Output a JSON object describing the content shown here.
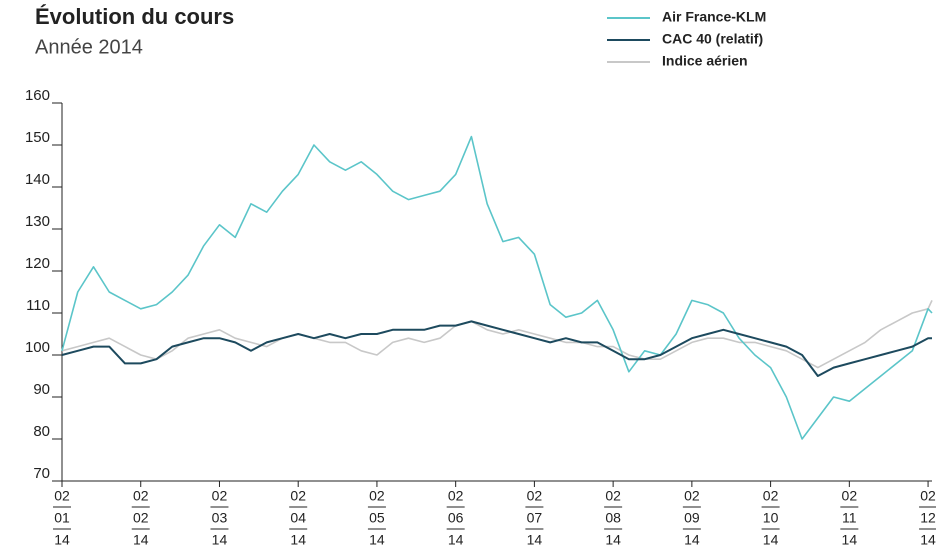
{
  "chart_data": {
    "type": "line",
    "title": "Évolution du cours",
    "subtitle": "Année 2014",
    "x": [
      0,
      0.2,
      0.4,
      0.6,
      0.8,
      1.0,
      1.2,
      1.4,
      1.6,
      1.8,
      2.0,
      2.2,
      2.4,
      2.6,
      2.8,
      3.0,
      3.2,
      3.4,
      3.6,
      3.8,
      4.0,
      4.2,
      4.4,
      4.6,
      4.8,
      5.0,
      5.2,
      5.4,
      5.6,
      5.8,
      6.0,
      6.2,
      6.4,
      6.6,
      6.8,
      7.0,
      7.2,
      7.4,
      7.6,
      7.8,
      8.0,
      8.2,
      8.4,
      8.6,
      8.8,
      9.0,
      9.2,
      9.4,
      9.6,
      9.8,
      10.0,
      10.2,
      10.4,
      10.6,
      10.8,
      11.0,
      11.05
    ],
    "series": [
      {
        "name": "Air France-KLM",
        "color": "#5bc5c9",
        "values": [
          101,
          115,
          121,
          115,
          113,
          111,
          112,
          115,
          119,
          126,
          131,
          128,
          136,
          134,
          139,
          143,
          150,
          146,
          144,
          146,
          143,
          139,
          137,
          138,
          139,
          143,
          152,
          136,
          127,
          128,
          124,
          112,
          109,
          110,
          113,
          106,
          96,
          101,
          100,
          105,
          113,
          112,
          110,
          104,
          100,
          97,
          90,
          80,
          85,
          90,
          89,
          92,
          95,
          98,
          101,
          111,
          110
        ]
      },
      {
        "name": "CAC 40 (relatif)",
        "color": "#1d4a5e",
        "values": [
          100,
          101,
          102,
          102,
          98,
          98,
          99,
          102,
          103,
          104,
          104,
          103,
          101,
          103,
          104,
          105,
          104,
          105,
          104,
          105,
          105,
          106,
          106,
          106,
          107,
          107,
          108,
          107,
          106,
          105,
          104,
          103,
          104,
          103,
          103,
          101,
          99,
          99,
          100,
          102,
          104,
          105,
          106,
          105,
          104,
          103,
          102,
          100,
          95,
          97,
          98,
          99,
          100,
          101,
          102,
          104,
          104
        ]
      },
      {
        "name": "Indice aérien",
        "color": "#c8c8c8",
        "values": [
          101,
          102,
          103,
          104,
          102,
          100,
          99,
          101,
          104,
          105,
          106,
          104,
          103,
          102,
          104,
          105,
          104,
          103,
          103,
          101,
          100,
          103,
          104,
          103,
          104,
          107,
          108,
          106,
          105,
          106,
          105,
          104,
          103,
          103,
          102,
          102,
          100,
          99,
          99,
          101,
          103,
          104,
          104,
          103,
          103,
          102,
          101,
          99,
          97,
          99,
          101,
          103,
          106,
          108,
          110,
          111,
          113
        ]
      }
    ],
    "xlim": [
      0,
      11.05
    ],
    "xticks": [
      {
        "value": 0,
        "label": [
          "02",
          "01",
          "14"
        ]
      },
      {
        "value": 1,
        "label": [
          "02",
          "02",
          "14"
        ]
      },
      {
        "value": 2,
        "label": [
          "02",
          "03",
          "14"
        ]
      },
      {
        "value": 3,
        "label": [
          "02",
          "04",
          "14"
        ]
      },
      {
        "value": 4,
        "label": [
          "02",
          "05",
          "14"
        ]
      },
      {
        "value": 5,
        "label": [
          "02",
          "06",
          "14"
        ]
      },
      {
        "value": 6,
        "label": [
          "02",
          "07",
          "14"
        ]
      },
      {
        "value": 7,
        "label": [
          "02",
          "08",
          "14"
        ]
      },
      {
        "value": 8,
        "label": [
          "02",
          "09",
          "14"
        ]
      },
      {
        "value": 9,
        "label": [
          "02",
          "10",
          "14"
        ]
      },
      {
        "value": 10,
        "label": [
          "02",
          "11",
          "14"
        ]
      },
      {
        "value": 11,
        "label": [
          "02",
          "12",
          "14"
        ]
      }
    ],
    "ylim": [
      70,
      160
    ],
    "yticks": [
      70,
      80,
      90,
      100,
      110,
      120,
      130,
      140,
      150,
      160
    ]
  }
}
